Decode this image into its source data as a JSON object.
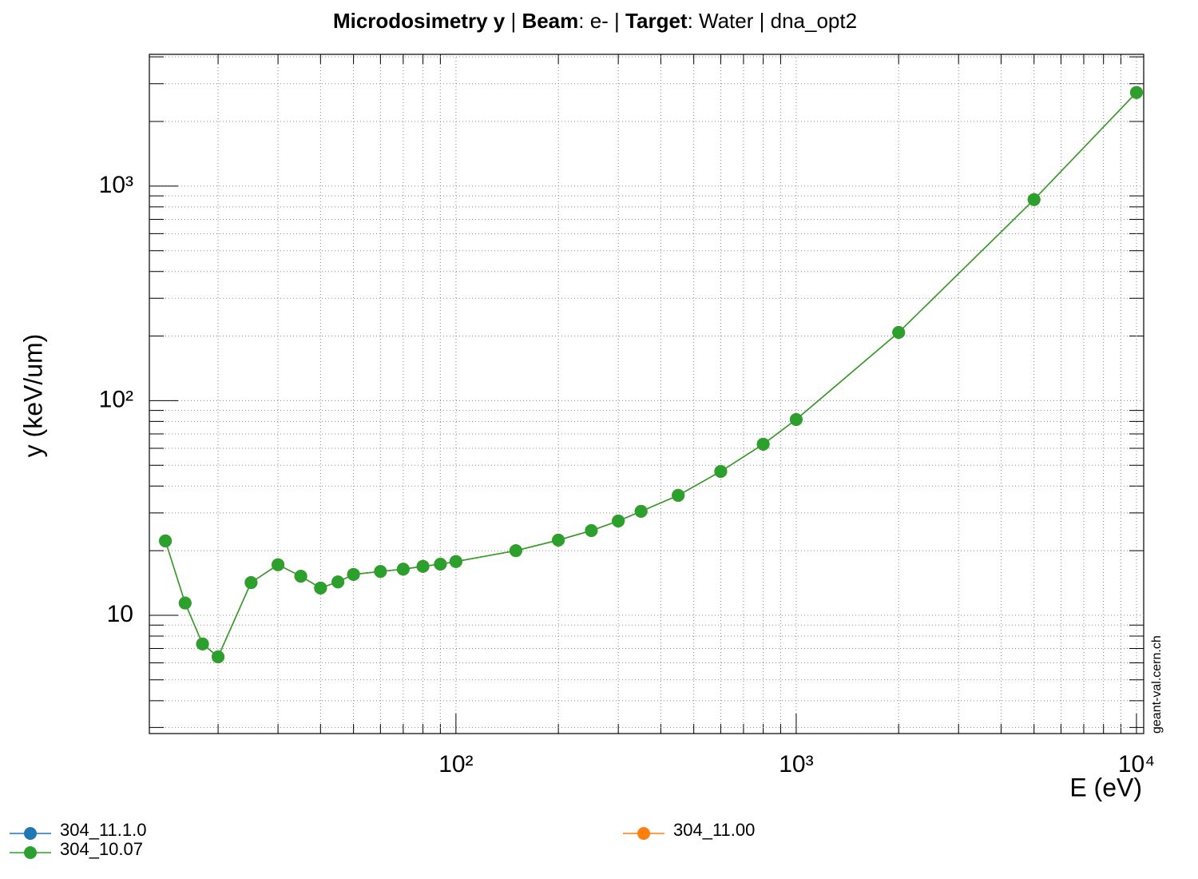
{
  "chart_data": {
    "type": "line",
    "title": [
      "Microdosimetry y",
      "  | ",
      "Beam",
      ": e- | ",
      "Target",
      ": Water | dna_opt2"
    ],
    "title_bold": [
      true,
      false,
      true,
      false,
      true,
      false
    ],
    "x_label": "E (eV)",
    "y_label": "y (keV/um)",
    "watermark": "geant-val.cern.ch",
    "x": [
      14,
      16,
      18,
      20,
      25,
      30,
      35,
      40,
      45,
      50,
      60,
      70,
      80,
      90,
      100,
      150,
      200,
      250,
      300,
      350,
      450,
      600,
      800,
      1000,
      2000,
      5000,
      10000
    ],
    "series": [
      {
        "name": "304_11.1.0",
        "color": "#1f77b4",
        "values": [
          22.2,
          11.4,
          7.35,
          6.4,
          14.2,
          17.2,
          15.2,
          13.4,
          14.3,
          15.5,
          16.0,
          16.4,
          16.9,
          17.3,
          17.8,
          20.0,
          22.4,
          24.8,
          27.5,
          30.5,
          36.2,
          46.8,
          62.7,
          81.7,
          208,
          865,
          2730
        ]
      },
      {
        "name": "304_11.00",
        "color": "#ff7f0e",
        "values": [
          22.2,
          11.4,
          7.35,
          6.4,
          14.2,
          17.2,
          15.2,
          13.4,
          14.3,
          15.5,
          16.0,
          16.4,
          16.9,
          17.3,
          17.8,
          20.0,
          22.4,
          24.8,
          27.5,
          30.5,
          36.2,
          46.8,
          62.7,
          81.7,
          208,
          865,
          2730
        ]
      },
      {
        "name": "304_10.07",
        "color": "#2ca02c",
        "values": [
          22.2,
          11.4,
          7.35,
          6.4,
          14.2,
          17.2,
          15.2,
          13.4,
          14.3,
          15.5,
          16.0,
          16.4,
          16.9,
          17.3,
          17.8,
          20.0,
          22.4,
          24.8,
          27.5,
          30.5,
          36.2,
          46.8,
          62.7,
          81.7,
          208,
          865,
          2730
        ]
      }
    ],
    "xlim": [
      12.56,
      10500
    ],
    "ylim": [
      2.81,
      4110
    ],
    "xticks": [
      {
        "value": 100,
        "label": "10²"
      },
      {
        "value": 1000,
        "label": "10³"
      },
      {
        "value": 10000,
        "label": "10⁴"
      }
    ],
    "yticks": [
      10,
      {
        "value": 100,
        "label": "10²"
      },
      {
        "value": 1000,
        "label": "10³"
      }
    ],
    "xlog": true,
    "ylog": true,
    "grid": true
  }
}
